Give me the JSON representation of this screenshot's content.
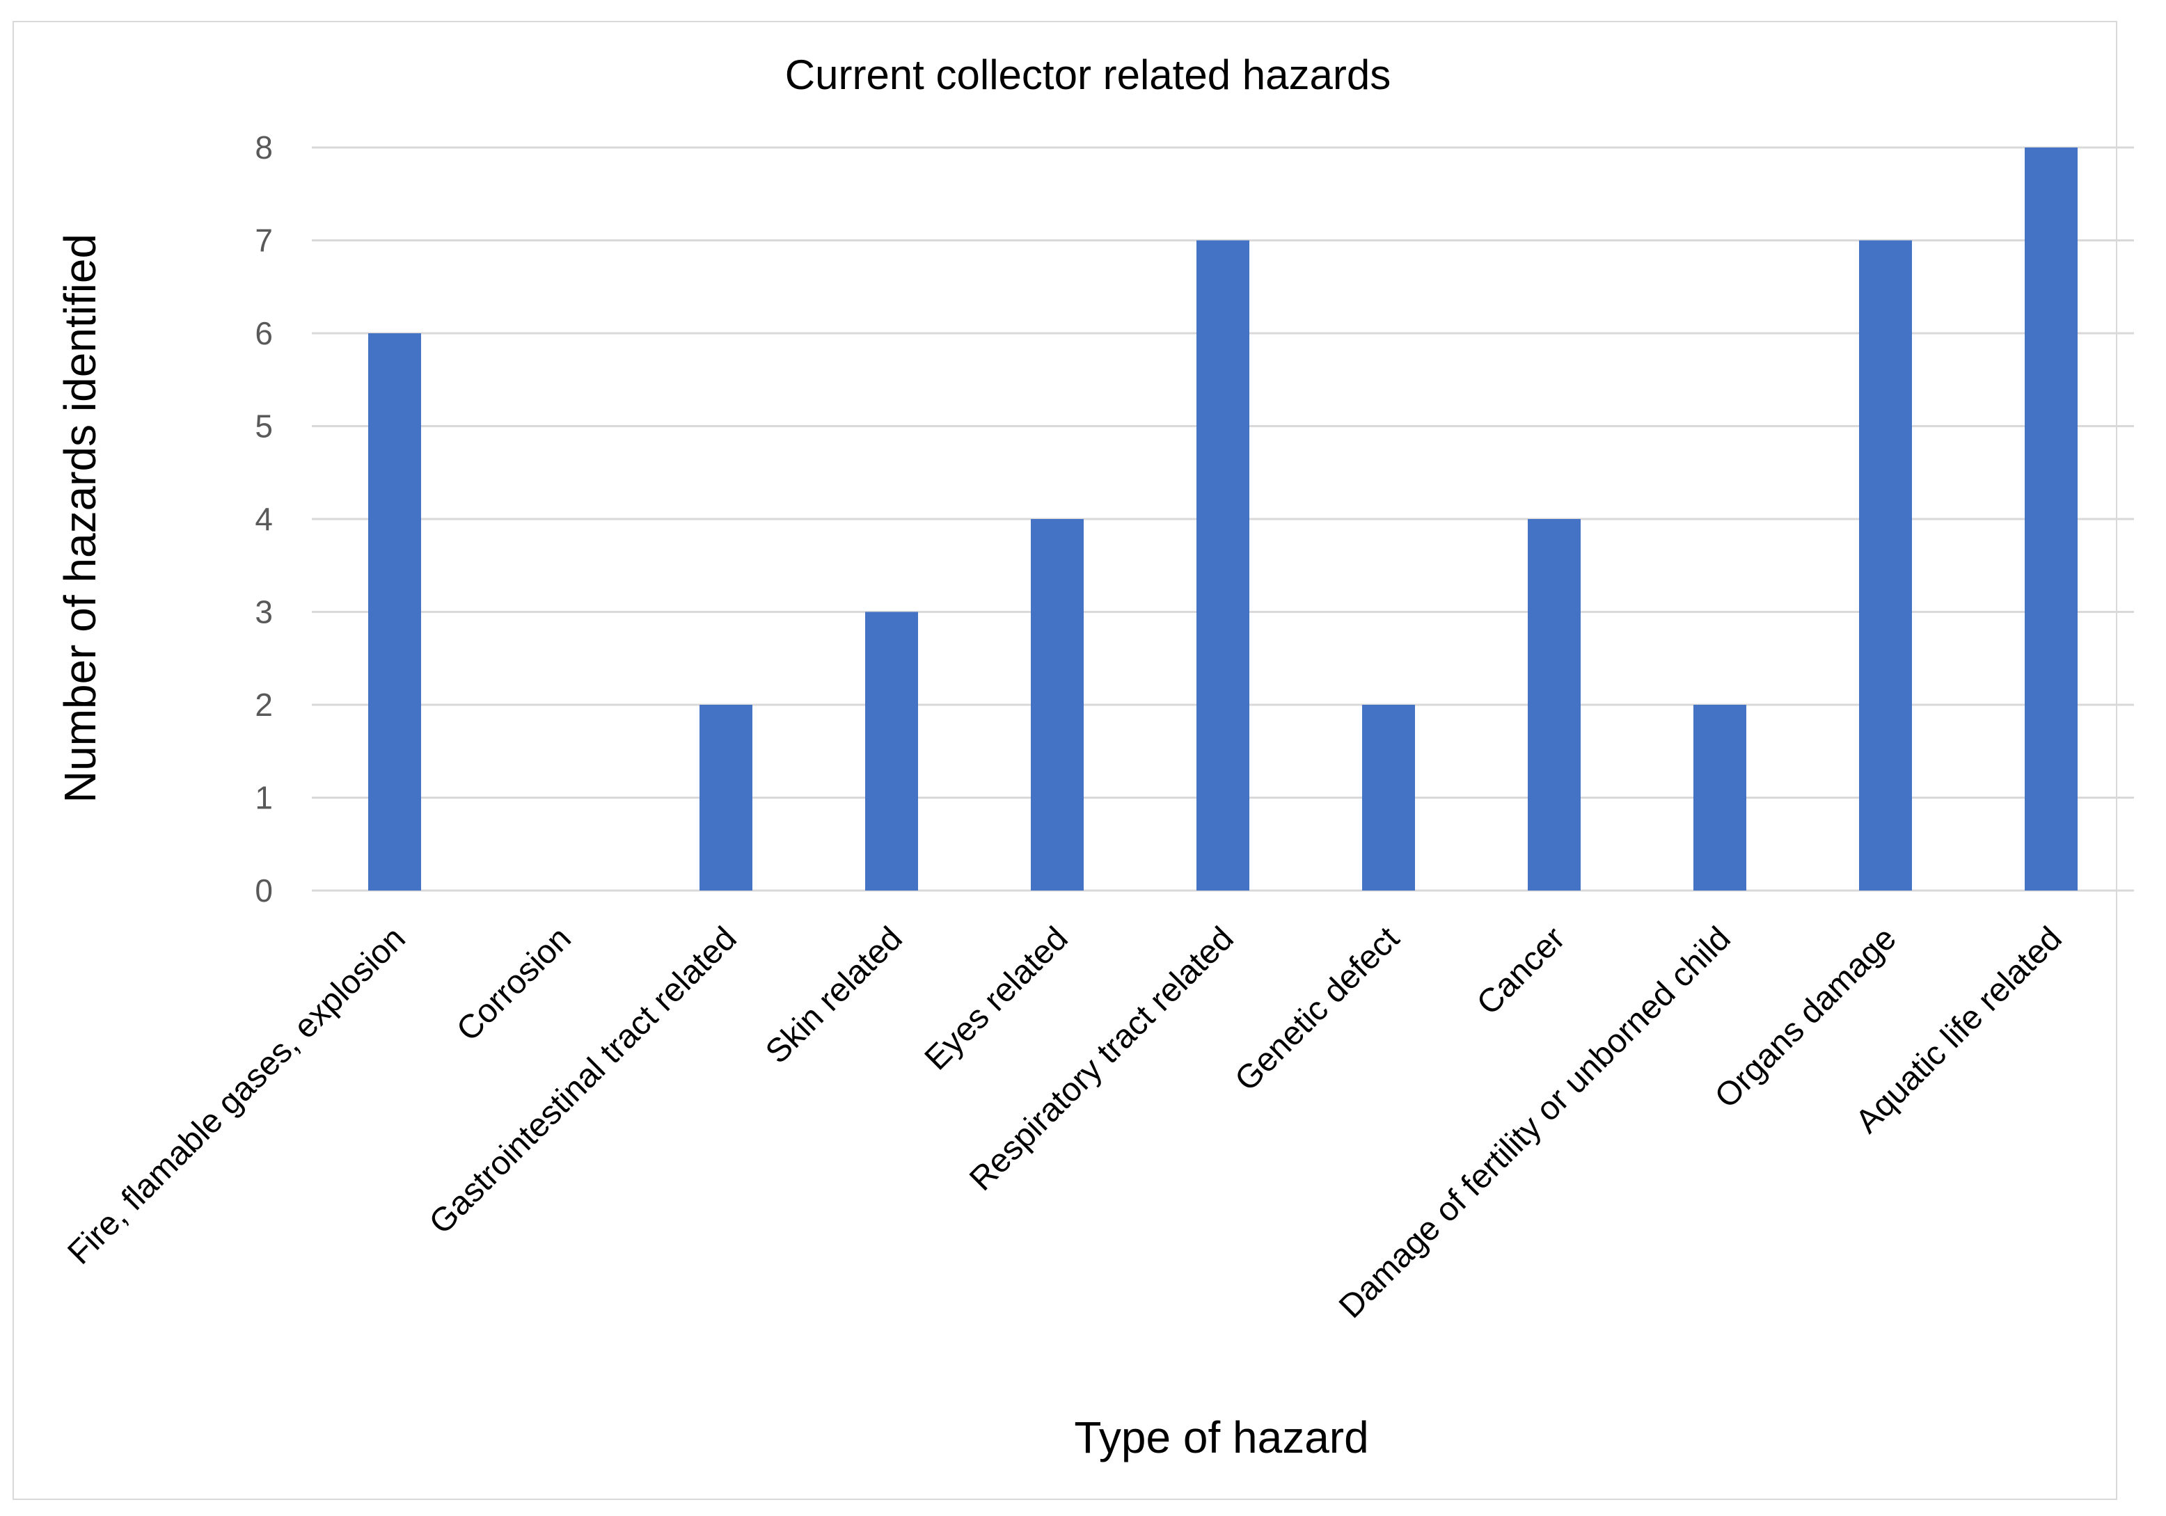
{
  "chart_data": {
    "type": "bar",
    "title": "Current collector related hazards",
    "xlabel": "Type of hazard",
    "ylabel": "Number of hazards identified",
    "categories": [
      "Fire, flamable gases, explosion",
      "Corrosion",
      "Gastrointestinal tract related",
      "Skin related",
      "Eyes related",
      "Respiratory tract related",
      "Genetic defect",
      "Cancer",
      "Damage of fertility or unborned child",
      "Organs damage",
      "Aquatic life related"
    ],
    "values": [
      6,
      0,
      2,
      3,
      4,
      7,
      2,
      4,
      2,
      7,
      8
    ],
    "ylim": [
      0,
      8
    ],
    "yticks": [
      "0",
      "1",
      "2",
      "3",
      "4",
      "5",
      "6",
      "7",
      "8"
    ],
    "grid": true,
    "legend": "none",
    "bar_color": "#4472c4"
  }
}
